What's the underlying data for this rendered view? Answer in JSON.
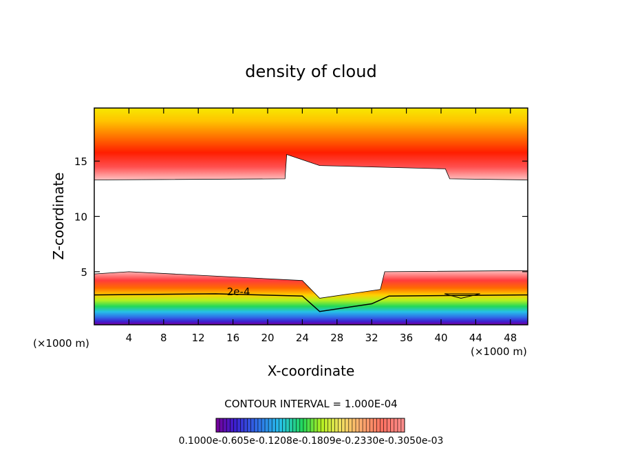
{
  "chart_data": {
    "type": "heatmap",
    "title": "density of cloud",
    "xlabel": "X-coordinate",
    "ylabel": "Z-coordinate",
    "x_unit_left": "(×1000 m)",
    "x_unit_right": "(×1000 m)",
    "xlim": [
      0,
      50
    ],
    "ylim": [
      0.2,
      19.8
    ],
    "x_ticks": [
      4,
      8,
      12,
      16,
      20,
      24,
      28,
      32,
      36,
      40,
      44,
      48
    ],
    "y_ticks": [
      5,
      10,
      15
    ],
    "contour_interval_label": "CONTOUR INTERVAL = 1.000E-04",
    "contour_label": "2e-4",
    "colorbar_labels_text": "0.1000e-0.605e-0.1208e-0.1809e-0.2330e-0.3050e-03",
    "colorbar_min": 0.0001,
    "colorbar_max": 0.0018,
    "colorbar_colors": [
      "#7a0099",
      "#3b1fd0",
      "#2f6ee8",
      "#26c0e8",
      "#22d85a",
      "#8ef02a",
      "#fbf200",
      "#ffb400",
      "#ff6a00",
      "#ff1a00",
      "#ff8080"
    ],
    "upper_layer": {
      "description_color_top": "#f6e800",
      "cloud_base_z": [
        [
          0,
          13.3
        ],
        [
          22,
          13.4
        ],
        [
          22.2,
          15.6
        ],
        [
          26,
          14.6
        ],
        [
          40.5,
          14.3
        ],
        [
          41,
          13.4
        ],
        [
          50,
          13.3
        ]
      ]
    },
    "lower_layer": {
      "cloud_top_z": [
        [
          0,
          4.8
        ],
        [
          4,
          5.0
        ],
        [
          24,
          4.2
        ],
        [
          26,
          2.6
        ],
        [
          33,
          3.4
        ],
        [
          33.5,
          5.0
        ],
        [
          50,
          5.1
        ]
      ],
      "contour_2e4_z": [
        [
          0,
          2.9
        ],
        [
          14,
          3.0
        ],
        [
          24,
          2.8
        ],
        [
          26,
          1.4
        ],
        [
          32,
          2.1
        ],
        [
          34,
          2.8
        ],
        [
          50,
          2.9
        ]
      ]
    },
    "colors": {
      "yellow": "#f6e800",
      "orange": "#ff8a00",
      "red": "#ff2200",
      "pink": "#ffb0b0",
      "green": "#2fd640",
      "blue": "#2444e0",
      "purple": "#7a0099"
    }
  }
}
